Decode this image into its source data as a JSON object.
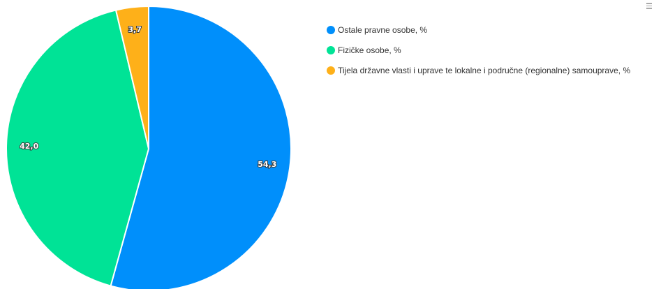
{
  "chart_data": {
    "type": "pie",
    "slices": [
      {
        "name": "Ostale pravne osobe, %",
        "value": 54.3,
        "label": "54,3",
        "color": "#008FFB"
      },
      {
        "name": "Fizičke osobe, %",
        "value": 42.0,
        "label": "42,0",
        "color": "#00E396"
      },
      {
        "name": "Tijela državne vlasti i uprave te lokalne i područne (regionalne) samouprave, %",
        "value": 3.7,
        "label": "3,7",
        "color": "#FEB019"
      }
    ],
    "legend_position": "top-right"
  },
  "toolbar": {
    "menu_icon": "hamburger-menu-icon"
  }
}
